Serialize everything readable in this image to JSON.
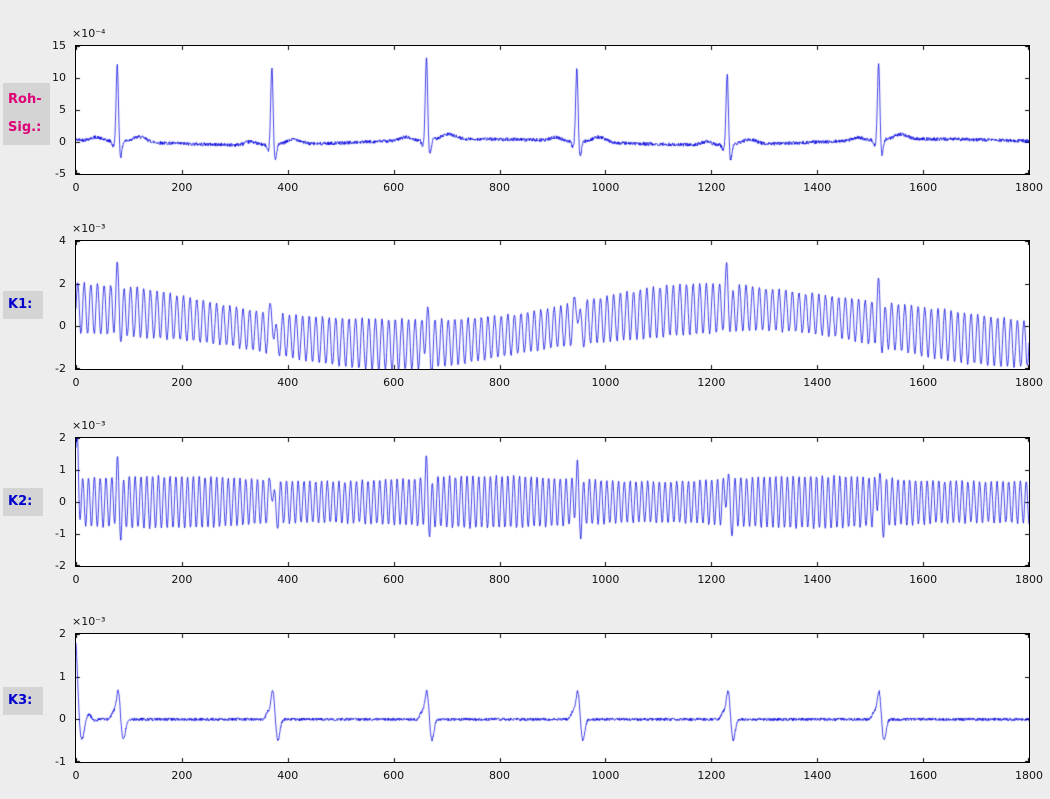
{
  "figure": {
    "bg_color": "#ededed",
    "label_bg": "#d4d4d4",
    "axes_bg": "#ffffff",
    "axes_border_color": "#000000",
    "row_labels": [
      {
        "text": "Roh-\nSig.:",
        "color": "#dd0077"
      },
      {
        "text": "K1:",
        "color": "#0000cc"
      },
      {
        "text": "K2:",
        "color": "#0000cc"
      },
      {
        "text": "K3:",
        "color": "#0000cc"
      }
    ]
  },
  "chart_data": [
    {
      "type": "line",
      "row_label": "Roh-Sig.:",
      "exp_label": "×10⁻⁴",
      "line_color": "#0000dd",
      "xlim": [
        0,
        1800
      ],
      "ylim": [
        -5,
        15
      ],
      "x_ticks": [
        0,
        200,
        400,
        600,
        800,
        1000,
        1200,
        1400,
        1600,
        1800
      ],
      "y_ticks": [
        -5,
        0,
        5,
        10,
        15
      ],
      "grid": false,
      "legend": null,
      "signal": {
        "kind": "ecg",
        "beats": [
          78,
          370,
          662,
          946,
          1230,
          1516
        ],
        "r_amplitudes": [
          12.0,
          12.3,
          12.9,
          11.6,
          11.2,
          12.2
        ],
        "q_depth": -0.9,
        "s_depth": -2.6,
        "t_amp": 0.8,
        "p_amp": 0.5,
        "noise": 0.28,
        "wander_amp": 0.45,
        "wander_period": 860
      }
    },
    {
      "type": "line",
      "row_label": "K1:",
      "exp_label": "×10⁻³",
      "line_color": "#0000dd",
      "xlim": [
        0,
        1800
      ],
      "ylim": [
        -2,
        4
      ],
      "x_ticks": [
        0,
        200,
        400,
        600,
        800,
        1000,
        1200,
        1400,
        1600,
        1800
      ],
      "y_ticks": [
        -2,
        0,
        2,
        4
      ],
      "grid": false,
      "legend": null,
      "signal": {
        "kind": "am_carrier",
        "carrier_period": 12.5,
        "carrier_amp": 1.05,
        "am_depth": 0.12,
        "am_period": 540,
        "drift_amp": 0.85,
        "drift_period": 1250,
        "drift_peak_x": 1230,
        "beats": [
          78,
          370,
          662,
          946,
          1230,
          1516
        ],
        "spike_amp": 1.15,
        "spike_undershoot": -0.5,
        "noise": 0.07
      }
    },
    {
      "type": "line",
      "row_label": "K2:",
      "exp_label": "×10⁻³",
      "line_color": "#0000dd",
      "xlim": [
        0,
        1800
      ],
      "ylim": [
        -2,
        2
      ],
      "x_ticks": [
        0,
        200,
        400,
        600,
        800,
        1000,
        1200,
        1400,
        1600,
        1800
      ],
      "y_ticks": [
        -2,
        -1,
        0,
        1,
        2
      ],
      "grid": false,
      "legend": null,
      "signal": {
        "kind": "carrier",
        "carrier_period": 11,
        "carrier_amp": 0.72,
        "am_depth": 0.12,
        "am_period": 620,
        "beats": [
          78,
          370,
          662,
          946,
          1230,
          1516
        ],
        "spike_amp": 0.75,
        "spike_undershoot": -0.45,
        "init_spike": 1.8,
        "noise": 0.04
      }
    },
    {
      "type": "line",
      "row_label": "K3:",
      "exp_label": "×10⁻³",
      "line_color": "#0000dd",
      "xlim": [
        0,
        1800
      ],
      "ylim": [
        -1,
        2
      ],
      "x_ticks": [
        0,
        200,
        400,
        600,
        800,
        1000,
        1200,
        1400,
        1600,
        1800
      ],
      "y_ticks": [
        -1,
        0,
        1,
        2
      ],
      "grid": false,
      "legend": null,
      "signal": {
        "kind": "spikes",
        "beats": [
          80,
          372,
          663,
          948,
          1232,
          1517
        ],
        "pre_amp": 0.18,
        "spike_amp": 0.68,
        "spike_undershoot": -0.5,
        "init_spike": 1.8,
        "init_decay": 9,
        "init_period": 26,
        "noise": 0.035
      }
    }
  ]
}
